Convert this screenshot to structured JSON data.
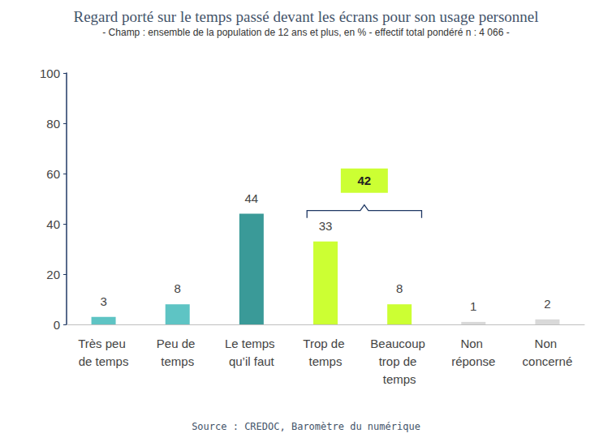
{
  "chart_data": {
    "type": "bar",
    "title": "Regard porté sur le temps passé devant les écrans pour son usage personnel",
    "subtitle": "- Champ : ensemble de la population de 12 ans et plus, en % - effectif total pondéré n : 4 066 -",
    "source": "Source : CREDOC, Baromètre du numérique",
    "categories": [
      "Très peu de temps",
      "Peu de temps",
      "Le temps qu’il faut",
      "Trop de temps",
      "Beaucoup trop de temps",
      "Non réponse",
      "Non concerné"
    ],
    "values": [
      3,
      8,
      44,
      33,
      8,
      1,
      2
    ],
    "colors": [
      "#5ec4c4",
      "#5ec4c4",
      "#3a9a98",
      "#ccff33",
      "#ccff33",
      "#d9d9d9",
      "#d9d9d9"
    ],
    "ylim": [
      0,
      100
    ],
    "yticks": [
      0,
      20,
      40,
      60,
      80,
      100
    ],
    "grid": false,
    "data_labels": true,
    "annotations": [
      {
        "value": 42,
        "span": [
          "Trop de temps",
          "Beaucoup trop de temps"
        ]
      }
    ]
  }
}
